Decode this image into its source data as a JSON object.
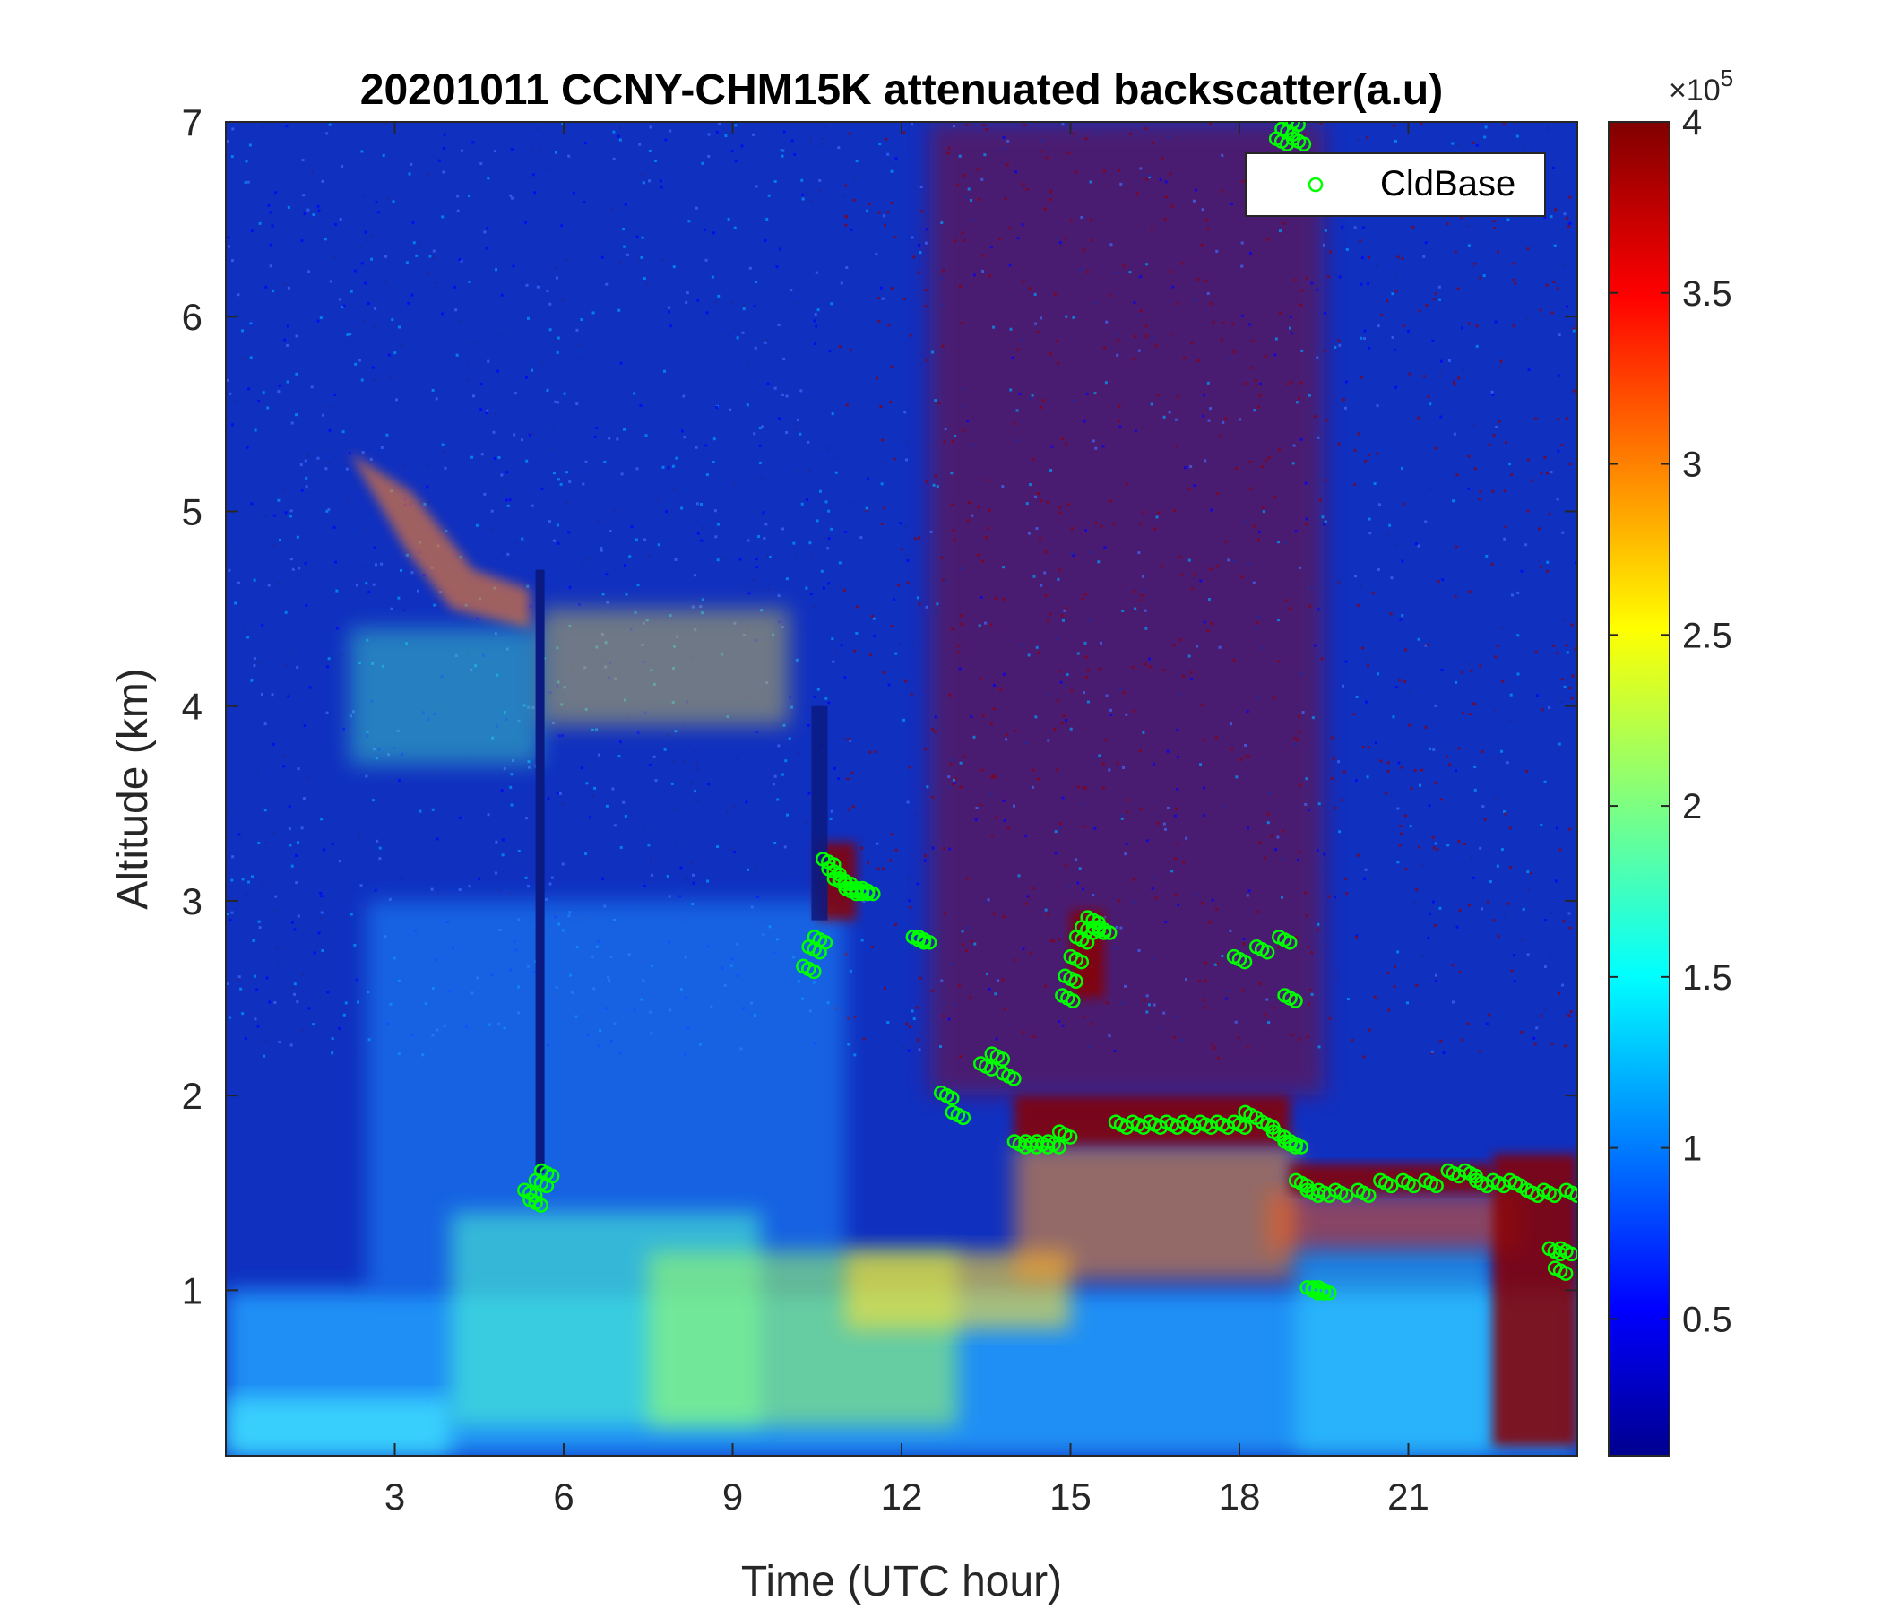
{
  "chart_data": {
    "type": "heatmap",
    "title": "20201011 CCNY-CHM15K attenuated backscatter(a.u)",
    "xlabel": "Time (UTC hour)",
    "ylabel": "Altitude (km)",
    "xlim": [
      0,
      24
    ],
    "ylim": [
      0.15,
      7
    ],
    "x_ticks": [
      3,
      6,
      9,
      12,
      15,
      18,
      21
    ],
    "x_tick_labels": [
      "3",
      "6",
      "9",
      "12",
      "15",
      "18",
      "21"
    ],
    "y_ticks": [
      1,
      2,
      3,
      4,
      5,
      6,
      7
    ],
    "y_tick_labels": [
      "1",
      "2",
      "3",
      "4",
      "5",
      "6",
      "7"
    ],
    "colorbar": {
      "colormap": "jet",
      "range": [
        10000,
        400000
      ],
      "exponent_label": "×10",
      "exponent_power": "5",
      "ticks": [
        0.5,
        1,
        1.5,
        2,
        2.5,
        3,
        3.5,
        4
      ],
      "tick_labels": [
        "0.5",
        "1",
        "1.5",
        "2",
        "2.5",
        "3",
        "3.5",
        "4"
      ]
    },
    "legend": {
      "position": "top-right",
      "entries": [
        "CldBase"
      ]
    },
    "series": [
      {
        "name": "CldBase",
        "type": "scatter",
        "marker": "open-circle",
        "color": "#00ff00",
        "x": [
          5.4,
          5.5,
          5.6,
          5.7,
          10.35,
          10.45,
          10.55,
          10.7,
          10.8,
          10.9,
          11.0,
          11.1,
          11.2,
          11.3,
          11.4,
          12.3,
          12.4,
          12.8,
          13.0,
          13.5,
          13.7,
          13.9,
          14.1,
          14.3,
          14.5,
          14.7,
          14.9,
          14.95,
          15.0,
          15.1,
          15.2,
          15.3,
          15.4,
          15.5,
          15.6,
          15.9,
          16.2,
          16.5,
          16.8,
          17.1,
          17.4,
          17.7,
          18.0,
          18.2,
          18.5,
          18.7,
          18.9,
          19.0,
          19.1,
          19.3,
          19.5,
          19.8,
          20.2,
          20.6,
          21.0,
          21.4,
          21.8,
          22.1,
          22.3,
          22.6,
          22.9,
          23.2,
          23.5,
          23.6,
          23.7,
          23.8,
          23.9,
          18.75,
          18.85,
          18.95,
          19.05,
          18.8,
          18.9,
          19.3,
          19.4,
          19.5,
          18.4,
          18.0
        ],
        "y": [
          1.5,
          1.45,
          1.55,
          1.6,
          2.65,
          2.75,
          2.8,
          3.2,
          3.15,
          3.1,
          3.1,
          3.05,
          3.05,
          3.05,
          3.05,
          2.8,
          2.8,
          2.0,
          1.9,
          2.15,
          2.2,
          2.1,
          1.75,
          1.75,
          1.75,
          1.75,
          1.8,
          2.5,
          2.6,
          2.7,
          2.8,
          2.85,
          2.9,
          2.85,
          2.85,
          1.85,
          1.85,
          1.85,
          1.85,
          1.85,
          1.85,
          1.85,
          1.85,
          1.9,
          1.85,
          1.8,
          1.75,
          1.75,
          1.55,
          1.5,
          1.5,
          1.5,
          1.5,
          1.55,
          1.55,
          1.55,
          1.6,
          1.6,
          1.55,
          1.55,
          1.55,
          1.5,
          1.5,
          1.2,
          1.1,
          1.2,
          1.5,
          6.9,
          6.95,
          7.0,
          6.9,
          2.8,
          2.5,
          1.0,
          1.0,
          1.0,
          2.75,
          2.7
        ]
      }
    ]
  }
}
